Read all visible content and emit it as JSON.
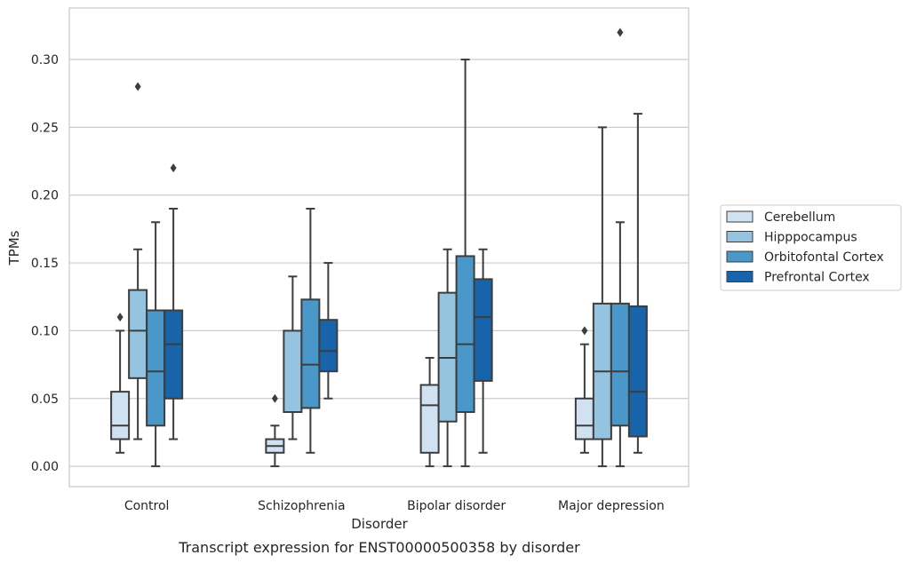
{
  "chart_data": {
    "type": "box",
    "title": "",
    "caption": "Transcript expression for ENST00000500358 by disorder",
    "xlabel": "Disorder",
    "ylabel": "TPMs",
    "ylim": [
      -0.015,
      0.338
    ],
    "yticks": [
      "0.00",
      "0.05",
      "0.10",
      "0.15",
      "0.20",
      "0.25",
      "0.30"
    ],
    "ytick_values": [
      0,
      0.05,
      0.1,
      0.15,
      0.2,
      0.25,
      0.3
    ],
    "grid": true,
    "legend_position": "right",
    "categories": [
      "Control",
      "Schizophrenia",
      "Bipolar disorder",
      "Major depression"
    ],
    "series": [
      {
        "name": "Cerebellum",
        "color": "#d0e1f2",
        "boxes": [
          {
            "whisker_low": 0.01,
            "q1": 0.02,
            "median": 0.03,
            "q3": 0.055,
            "whisker_high": 0.1,
            "outliers": [
              0.11
            ]
          },
          {
            "whisker_low": 0.0,
            "q1": 0.01,
            "median": 0.015,
            "q3": 0.02,
            "whisker_high": 0.03,
            "outliers": [
              0.05
            ]
          },
          {
            "whisker_low": 0.0,
            "q1": 0.01,
            "median": 0.045,
            "q3": 0.06,
            "whisker_high": 0.08,
            "outliers": []
          },
          {
            "whisker_low": 0.01,
            "q1": 0.02,
            "median": 0.03,
            "q3": 0.05,
            "whisker_high": 0.09,
            "outliers": [
              0.1
            ]
          }
        ]
      },
      {
        "name": "Hipppocampus",
        "color": "#94c4df",
        "boxes": [
          {
            "whisker_low": 0.02,
            "q1": 0.065,
            "median": 0.1,
            "q3": 0.13,
            "whisker_high": 0.16,
            "outliers": [
              0.28
            ]
          },
          {
            "whisker_low": 0.02,
            "q1": 0.04,
            "median": 0.04,
            "q3": 0.1,
            "whisker_high": 0.14,
            "outliers": []
          },
          {
            "whisker_low": 0.0,
            "q1": 0.033,
            "median": 0.08,
            "q3": 0.128,
            "whisker_high": 0.16,
            "outliers": []
          },
          {
            "whisker_low": 0.0,
            "q1": 0.02,
            "median": 0.07,
            "q3": 0.12,
            "whisker_high": 0.25,
            "outliers": []
          }
        ]
      },
      {
        "name": "Orbitofontal Cortex",
        "color": "#4a98c9",
        "boxes": [
          {
            "whisker_low": 0.0,
            "q1": 0.03,
            "median": 0.07,
            "q3": 0.115,
            "whisker_high": 0.18,
            "outliers": []
          },
          {
            "whisker_low": 0.01,
            "q1": 0.043,
            "median": 0.075,
            "q3": 0.123,
            "whisker_high": 0.19,
            "outliers": []
          },
          {
            "whisker_low": 0.0,
            "q1": 0.04,
            "median": 0.09,
            "q3": 0.155,
            "whisker_high": 0.3,
            "outliers": []
          },
          {
            "whisker_low": 0.0,
            "q1": 0.03,
            "median": 0.07,
            "q3": 0.12,
            "whisker_high": 0.18,
            "outliers": [
              0.32
            ]
          }
        ]
      },
      {
        "name": "Prefrontal Cortex",
        "color": "#1764ab",
        "boxes": [
          {
            "whisker_low": 0.02,
            "q1": 0.05,
            "median": 0.09,
            "q3": 0.115,
            "whisker_high": 0.19,
            "outliers": [
              0.22
            ]
          },
          {
            "whisker_low": 0.05,
            "q1": 0.07,
            "median": 0.085,
            "q3": 0.108,
            "whisker_high": 0.15,
            "outliers": []
          },
          {
            "whisker_low": 0.01,
            "q1": 0.063,
            "median": 0.11,
            "q3": 0.138,
            "whisker_high": 0.16,
            "outliers": []
          },
          {
            "whisker_low": 0.01,
            "q1": 0.022,
            "median": 0.055,
            "q3": 0.118,
            "whisker_high": 0.26,
            "outliers": []
          }
        ]
      }
    ]
  }
}
